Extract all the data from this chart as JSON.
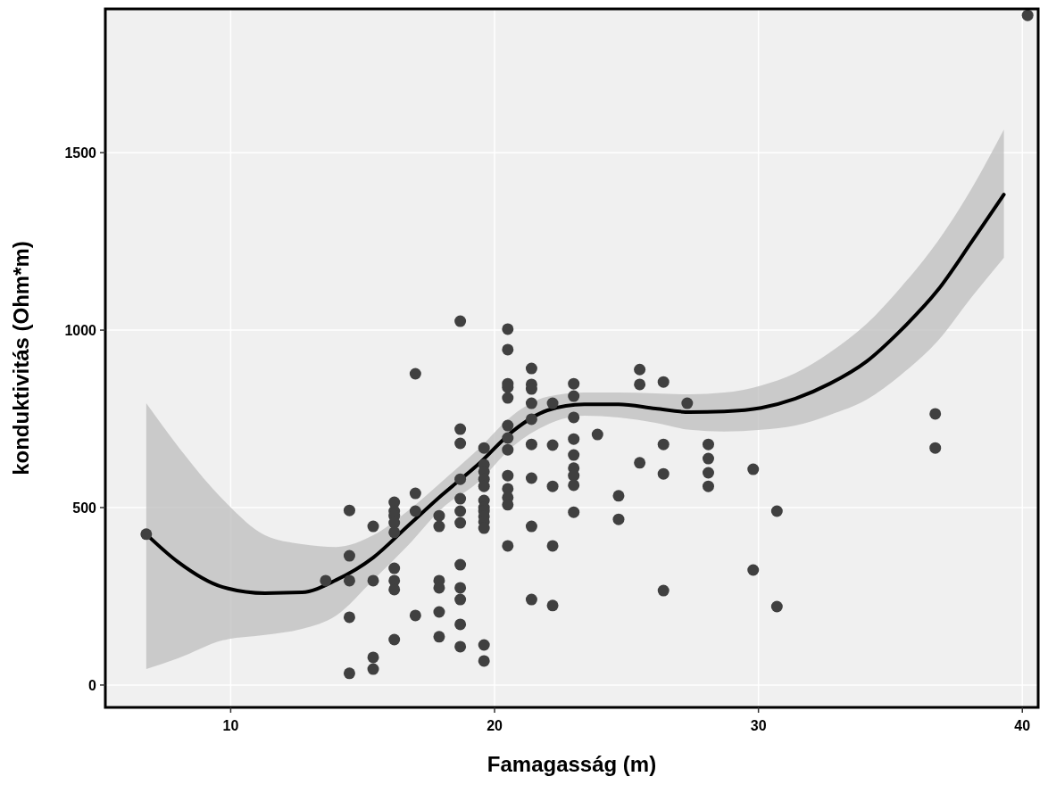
{
  "chart_data": {
    "type": "scatter",
    "xlabel": "Famagasság (m)",
    "ylabel": "konduktivitás (Ohm*m)",
    "xlim": [
      5.25,
      40.6
    ],
    "ylim": [
      -63,
      1905
    ],
    "xticks": [
      10,
      20,
      30,
      40
    ],
    "yticks": [
      0,
      500,
      1000,
      1500
    ],
    "grid": true,
    "marker": "circle",
    "series": [
      {
        "color": "#404040",
        "x": [
          6.8,
          13.6,
          14.5,
          14.5,
          14.5,
          14.5,
          14.5,
          15.4,
          15.4,
          15.4,
          15.4,
          16.2,
          16.2,
          16.2,
          16.2,
          16.2,
          16.2,
          16.2,
          16.2,
          16.2,
          17.0,
          17.0,
          17.0,
          17.0,
          17.9,
          17.9,
          17.9,
          17.9,
          17.9,
          17.9,
          18.7,
          18.7,
          18.7,
          18.7,
          18.7,
          18.7,
          18.7,
          18.7,
          18.7,
          18.7,
          18.7,
          18.7,
          19.6,
          19.6,
          19.6,
          19.6,
          19.6,
          19.6,
          19.6,
          19.6,
          19.6,
          19.6,
          19.6,
          19.6,
          19.6,
          20.5,
          20.5,
          20.5,
          20.5,
          20.5,
          20.5,
          20.5,
          20.5,
          20.5,
          20.5,
          20.5,
          20.5,
          20.5,
          21.4,
          21.4,
          21.4,
          21.4,
          21.4,
          21.4,
          21.4,
          21.4,
          21.4,
          22.2,
          22.2,
          22.2,
          22.2,
          22.2,
          23.0,
          23.0,
          23.0,
          23.0,
          23.0,
          23.0,
          23.0,
          23.0,
          23.0,
          23.9,
          24.7,
          24.7,
          25.5,
          25.5,
          25.5,
          26.4,
          26.4,
          26.4,
          26.4,
          27.3,
          28.1,
          28.1,
          28.1,
          28.1,
          29.8,
          29.8,
          30.7,
          30.7,
          36.7,
          36.7,
          40.2
        ],
        "values": [
          425,
          294,
          492,
          364,
          294,
          191,
          33,
          447,
          294,
          78,
          45,
          515,
          490,
          477,
          457,
          430,
          329,
          294,
          269,
          128,
          877,
          540,
          490,
          196,
          477,
          447,
          294,
          274,
          206,
          136,
          1025,
          721,
          681,
          580,
          525,
          490,
          457,
          339,
          274,
          241,
          171,
          108,
          668,
          621,
          601,
          580,
          560,
          520,
          500,
          490,
          475,
          460,
          442,
          113,
          68,
          1003,
          945,
          849,
          839,
          809,
          731,
          696,
          663,
          590,
          553,
          528,
          508,
          392,
          892,
          847,
          834,
          794,
          749,
          678,
          583,
          447,
          241,
          794,
          676,
          560,
          392,
          224,
          849,
          814,
          754,
          693,
          648,
          611,
          590,
          487,
          563,
          706,
          533,
          467,
          889,
          847,
          626,
          854,
          678,
          595,
          266,
          794,
          678,
          638,
          598,
          560,
          608,
          324,
          490,
          221,
          764,
          668,
          1887
        ]
      },
      {
        "type": "line",
        "color": "#000000",
        "marker": "none",
        "x": [
          6.8,
          8.0,
          9.7,
          11.3,
          12.7,
          14.0,
          15.4,
          16.7,
          18.0,
          19.4,
          20.7,
          22.0,
          23.4,
          24.7,
          26.1,
          27.4,
          28.7,
          30.1,
          31.4,
          32.7,
          34.1,
          35.4,
          36.8,
          38.1,
          39.3
        ],
        "values": [
          425,
          347,
          276,
          259,
          261,
          296,
          359,
          447,
          535,
          623,
          716,
          774,
          791,
          791,
          779,
          769,
          771,
          781,
          807,
          849,
          912,
          1000,
          1113,
          1251,
          1382
        ],
        "lower": [
          45,
          75,
          126,
          141,
          158,
          196,
          296,
          392,
          497,
          573,
          673,
          734,
          759,
          754,
          739,
          719,
          714,
          719,
          731,
          761,
          804,
          874,
          970,
          1095,
          1204
        ],
        "upper": [
          794,
          673,
          523,
          422,
          397,
          389,
          422,
          490,
          573,
          666,
          761,
          812,
          824,
          824,
          822,
          819,
          824,
          844,
          879,
          937,
          1018,
          1121,
          1251,
          1402,
          1565
        ]
      }
    ]
  }
}
